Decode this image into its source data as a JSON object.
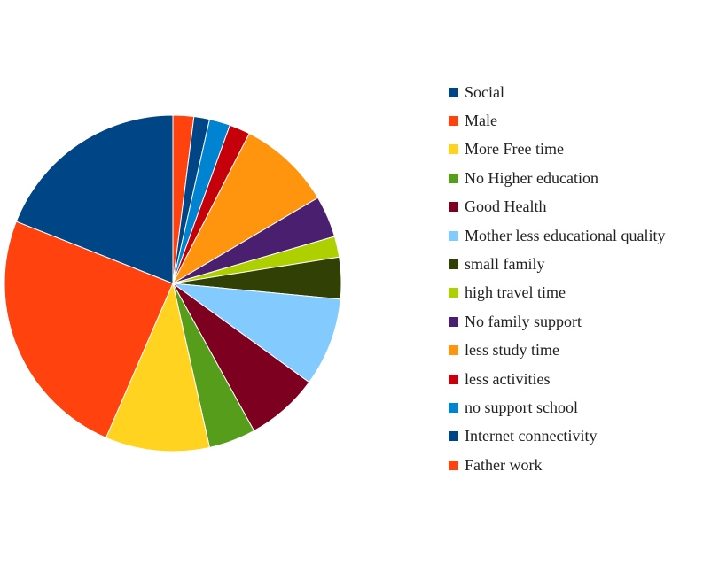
{
  "chart_data": {
    "type": "pie",
    "title": "",
    "legend_position": "right",
    "slices": [
      {
        "label": "Father work",
        "value": 2.0,
        "color": "#ff420e"
      },
      {
        "label": "Internet connectivity",
        "value": 1.5,
        "color": "#004586"
      },
      {
        "label": "no support school",
        "value": 2.0,
        "color": "#0084d1"
      },
      {
        "label": "less activities",
        "value": 2.0,
        "color": "#c5000b"
      },
      {
        "label": "less study time",
        "value": 9.0,
        "color": "#ff950e"
      },
      {
        "label": "No family support",
        "value": 4.0,
        "color": "#4b1f6f"
      },
      {
        "label": "high travel time",
        "value": 2.0,
        "color": "#aecf00"
      },
      {
        "label": "small family",
        "value": 4.0,
        "color": "#314004"
      },
      {
        "label": "Mother less educational quality",
        "value": 8.5,
        "color": "#83caff"
      },
      {
        "label": "Good Health",
        "value": 7.0,
        "color": "#7e0021"
      },
      {
        "label": "No Higher education",
        "value": 4.5,
        "color": "#579d1c"
      },
      {
        "label": "More Free time",
        "value": 10.0,
        "color": "#ffd320"
      },
      {
        "label": "Male",
        "value": 24.5,
        "color": "#ff420e"
      },
      {
        "label": "Social",
        "value": 19.0,
        "color": "#004586"
      }
    ],
    "legend_order": [
      "Social",
      "Male",
      "More Free time",
      "No Higher education",
      "Good Health",
      "Mother less educational quality",
      "small family",
      "high travel time",
      "No family support",
      "less study time",
      "less activities",
      "no support school",
      "Internet connectivity",
      "Father work"
    ]
  }
}
